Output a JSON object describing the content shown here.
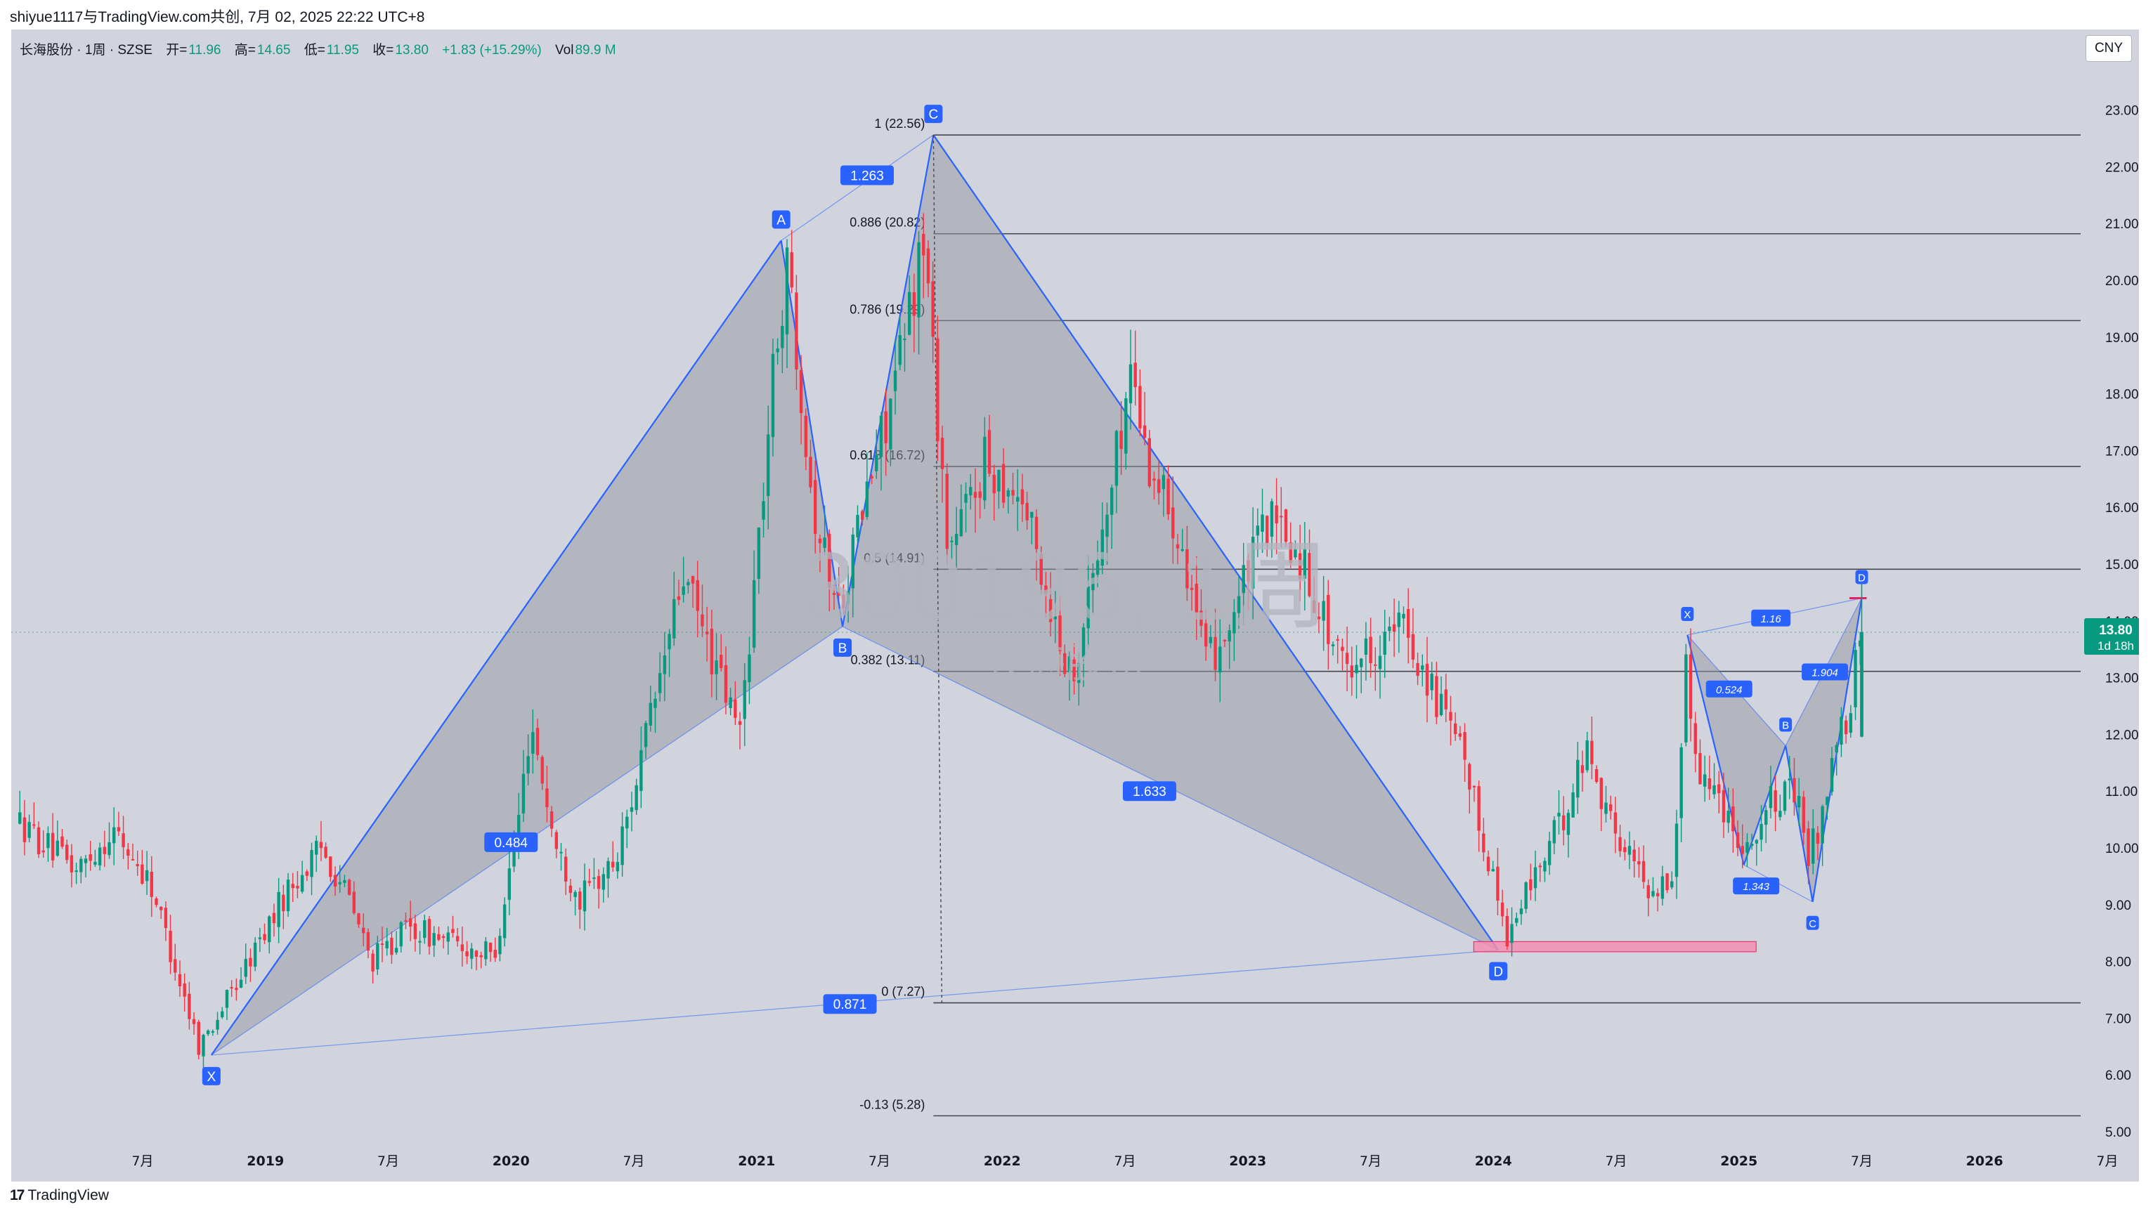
{
  "header": {
    "share_text": "shiyue1117与TradingView.com共创, 7月 02, 2025 22:22 UTC+8"
  },
  "legend": {
    "symbol": "长海股份 · 1周 · SZSE",
    "open_label": "开=",
    "open": "11.96",
    "high_label": "高=",
    "high": "14.65",
    "low_label": "低=",
    "low": "11.95",
    "close_label": "收=",
    "close": "13.80",
    "change": "+1.83 (+15.29%)",
    "vol_label": "Vol",
    "vol": "89.9 M"
  },
  "currency_button": "CNY",
  "watermark": {
    "line1": "300196, 1周",
    "line2": "长海股份"
  },
  "footer": {
    "logo_mark": "17",
    "logo_text": "TradingView"
  },
  "colors": {
    "background": "#d1d4dc",
    "up": "#089981",
    "down": "#f23645",
    "pattern_line": "#2962ff",
    "pattern_fill": "#9598a1",
    "badge": "#2962ff",
    "zone": "#f48fb1"
  },
  "chart_data": {
    "type": "candlestick",
    "symbol": "300196",
    "interval": "1周",
    "ylim": [
      4.6,
      24.0
    ],
    "y_ticks": [
      "5.00",
      "6.00",
      "7.00",
      "8.00",
      "9.00",
      "10.00",
      "11.00",
      "12.00",
      "13.00",
      "14.00",
      "15.00",
      "16.00",
      "17.00",
      "18.00",
      "19.00",
      "20.00",
      "21.00",
      "22.00",
      "23.00"
    ],
    "x_ticks": [
      {
        "label": "7月",
        "t": 2018.5
      },
      {
        "label": "2019",
        "t": 2019.0
      },
      {
        "label": "7月",
        "t": 2019.5
      },
      {
        "label": "2020",
        "t": 2020.0
      },
      {
        "label": "7月",
        "t": 2020.5
      },
      {
        "label": "2021",
        "t": 2021.0
      },
      {
        "label": "7月",
        "t": 2021.5
      },
      {
        "label": "2022",
        "t": 2022.0
      },
      {
        "label": "7月",
        "t": 2022.5
      },
      {
        "label": "2023",
        "t": 2023.0
      },
      {
        "label": "7月",
        "t": 2023.5
      },
      {
        "label": "2024",
        "t": 2024.0
      },
      {
        "label": "7月",
        "t": 2024.5
      },
      {
        "label": "2025",
        "t": 2025.0
      },
      {
        "label": "7月",
        "t": 2025.5
      },
      {
        "label": "2026",
        "t": 2026.0
      },
      {
        "label": "7月",
        "t": 2026.5
      }
    ],
    "price_path": [
      {
        "t": 2018.0,
        "p": 10.5
      },
      {
        "t": 2018.25,
        "p": 9.6
      },
      {
        "t": 2018.4,
        "p": 10.3
      },
      {
        "t": 2018.55,
        "p": 9.4
      },
      {
        "t": 2018.75,
        "p": 6.5
      },
      {
        "t": 2018.9,
        "p": 7.6
      },
      {
        "t": 2019.1,
        "p": 9.2
      },
      {
        "t": 2019.25,
        "p": 10.0
      },
      {
        "t": 2019.35,
        "p": 9.2
      },
      {
        "t": 2019.45,
        "p": 8.0
      },
      {
        "t": 2019.6,
        "p": 8.6
      },
      {
        "t": 2019.8,
        "p": 8.3
      },
      {
        "t": 2019.95,
        "p": 8.1
      },
      {
        "t": 2020.05,
        "p": 10.5
      },
      {
        "t": 2020.1,
        "p": 12.3
      },
      {
        "t": 2020.2,
        "p": 10.0
      },
      {
        "t": 2020.3,
        "p": 9.1
      },
      {
        "t": 2020.45,
        "p": 9.8
      },
      {
        "t": 2020.6,
        "p": 12.5
      },
      {
        "t": 2020.72,
        "p": 14.8
      },
      {
        "t": 2020.85,
        "p": 13.2
      },
      {
        "t": 2020.95,
        "p": 12.0
      },
      {
        "t": 2021.05,
        "p": 16.5
      },
      {
        "t": 2021.1,
        "p": 19.0
      },
      {
        "t": 2021.15,
        "p": 20.3
      },
      {
        "t": 2021.25,
        "p": 16.0
      },
      {
        "t": 2021.35,
        "p": 14.2
      },
      {
        "t": 2021.5,
        "p": 16.8
      },
      {
        "t": 2021.6,
        "p": 18.5
      },
      {
        "t": 2021.7,
        "p": 20.8
      },
      {
        "t": 2021.8,
        "p": 15.2
      },
      {
        "t": 2021.95,
        "p": 16.8
      },
      {
        "t": 2022.1,
        "p": 16.2
      },
      {
        "t": 2022.2,
        "p": 14.5
      },
      {
        "t": 2022.3,
        "p": 13.0
      },
      {
        "t": 2022.45,
        "p": 16.0
      },
      {
        "t": 2022.55,
        "p": 18.6
      },
      {
        "t": 2022.6,
        "p": 17.0
      },
      {
        "t": 2022.75,
        "p": 15.5
      },
      {
        "t": 2022.85,
        "p": 13.2
      },
      {
        "t": 2022.95,
        "p": 14.0
      },
      {
        "t": 2023.1,
        "p": 15.8
      },
      {
        "t": 2023.25,
        "p": 15.0
      },
      {
        "t": 2023.4,
        "p": 13.2
      },
      {
        "t": 2023.55,
        "p": 13.6
      },
      {
        "t": 2023.65,
        "p": 13.9
      },
      {
        "t": 2023.75,
        "p": 13.0
      },
      {
        "t": 2023.9,
        "p": 11.5
      },
      {
        "t": 2024.0,
        "p": 9.8
      },
      {
        "t": 2024.08,
        "p": 8.4
      },
      {
        "t": 2024.15,
        "p": 9.2
      },
      {
        "t": 2024.3,
        "p": 10.5
      },
      {
        "t": 2024.4,
        "p": 11.8
      },
      {
        "t": 2024.5,
        "p": 10.4
      },
      {
        "t": 2024.65,
        "p": 9.3
      },
      {
        "t": 2024.75,
        "p": 9.4
      },
      {
        "t": 2024.8,
        "p": 13.2
      },
      {
        "t": 2024.85,
        "p": 11.5
      },
      {
        "t": 2024.95,
        "p": 10.8
      },
      {
        "t": 2025.05,
        "p": 10.0
      },
      {
        "t": 2025.15,
        "p": 10.8
      },
      {
        "t": 2025.25,
        "p": 11.0
      },
      {
        "t": 2025.3,
        "p": 9.8
      },
      {
        "t": 2025.35,
        "p": 10.5
      },
      {
        "t": 2025.42,
        "p": 11.9
      },
      {
        "t": 2025.46,
        "p": 12.3
      },
      {
        "t": 2025.48,
        "p": 11.96
      },
      {
        "t": 2025.5,
        "p": 13.8
      }
    ],
    "last_price": {
      "value": 13.8,
      "label": "13.80",
      "countdown": "1d 18h"
    },
    "fib_levels": [
      {
        "label": "1 (22.56)",
        "value": 22.56
      },
      {
        "label": "0.886 (20.82)",
        "value": 20.82
      },
      {
        "label": "0.786 (19.29)",
        "value": 19.29
      },
      {
        "label": "0.618 (16.72)",
        "value": 16.72
      },
      {
        "label": "0.5 (14.91)",
        "value": 14.91
      },
      {
        "label": "0.382 (13.11)",
        "value": 13.11
      },
      {
        "label": "0 (7.27)",
        "value": 7.27
      },
      {
        "label": "-0.13 (5.28)",
        "value": 5.28
      }
    ],
    "fib_start_t": 2021.72,
    "pattern_large": {
      "points": [
        {
          "label": "X",
          "t": 2018.78,
          "p": 6.35,
          "below": true
        },
        {
          "label": "A",
          "t": 2021.1,
          "p": 20.7,
          "below": false
        },
        {
          "label": "B",
          "t": 2021.35,
          "p": 13.9,
          "below": true
        },
        {
          "label": "C",
          "t": 2021.72,
          "p": 22.56,
          "below": false
        },
        {
          "label": "D",
          "t": 2024.02,
          "p": 8.2,
          "below": true
        }
      ],
      "ratios": [
        {
          "label": "1.263",
          "t": 2021.45,
          "p": 21.85
        },
        {
          "label": "0.484",
          "t": 2020.0,
          "p": 10.1
        },
        {
          "label": "1.633",
          "t": 2022.6,
          "p": 11.0
        },
        {
          "label": "0.871",
          "t": 2021.38,
          "p": 7.25
        }
      ]
    },
    "pattern_small": {
      "points": [
        {
          "label": "X",
          "t": 2024.79,
          "p": 13.75,
          "below": false
        },
        {
          "label": "A",
          "t": 2025.02,
          "p": 9.7,
          "below": true
        },
        {
          "label": "B",
          "t": 2025.19,
          "p": 11.8,
          "below": false
        },
        {
          "label": "C",
          "t": 2025.3,
          "p": 9.05,
          "below": true
        },
        {
          "label": "D",
          "t": 2025.5,
          "p": 14.4,
          "below": false
        }
      ],
      "ratios": [
        {
          "label": "1.16",
          "t": 2025.13,
          "p": 14.05
        },
        {
          "label": "0.524",
          "t": 2024.96,
          "p": 12.8
        },
        {
          "label": "1.343",
          "t": 2025.07,
          "p": 9.33
        },
        {
          "label": "1.904",
          "t": 2025.35,
          "p": 13.1
        }
      ]
    },
    "zone": {
      "t_start": 2023.92,
      "t_end": 2025.07,
      "p_low": 8.17,
      "p_high": 8.35
    },
    "d_marker": {
      "t_start": 2025.45,
      "t_end": 2025.52,
      "p": 14.4
    }
  }
}
